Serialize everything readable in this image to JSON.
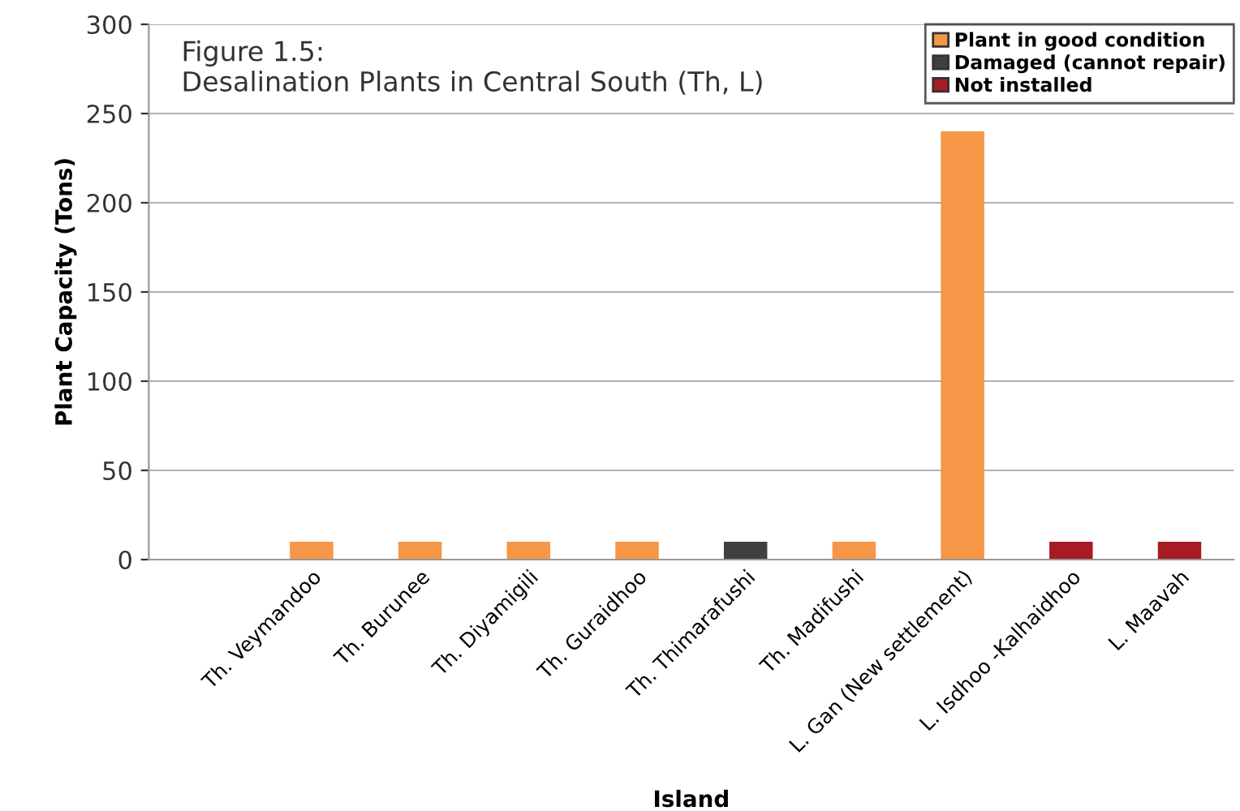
{
  "chart_data": {
    "type": "bar",
    "title": "Figure 1.5:\nDesalination Plants in Central South (Th, L)",
    "xlabel": "Island",
    "ylabel": "Plant Capacity (Tons)",
    "categories": [
      null,
      "Th. Veymandoo",
      "Th. Burunee",
      "Th. Diyamigili",
      "Th. Guraidhoo",
      "Th. Thimarafushi",
      "Th. Madifushi",
      "L. Gan (New settlement)",
      "L. Isdhoo -Kalhaidhoo",
      "L. Maavah"
    ],
    "series": [
      {
        "name": "Plant in good condition",
        "color": "#f79646",
        "values": [
          null,
          10,
          10,
          10,
          10,
          null,
          10,
          240,
          null,
          null
        ]
      },
      {
        "name": "Damaged (cannot repair)",
        "color": "#404040",
        "values": [
          null,
          null,
          null,
          null,
          null,
          10,
          null,
          null,
          null,
          null
        ]
      },
      {
        "name": "Not installed",
        "color": "#a61c22",
        "values": [
          null,
          null,
          null,
          null,
          null,
          null,
          null,
          null,
          10,
          10
        ]
      }
    ],
    "ylim": [
      0,
      300
    ],
    "yticks": [
      0,
      50,
      100,
      150,
      200,
      250,
      300
    ],
    "grid": "y",
    "legend": "top right"
  }
}
